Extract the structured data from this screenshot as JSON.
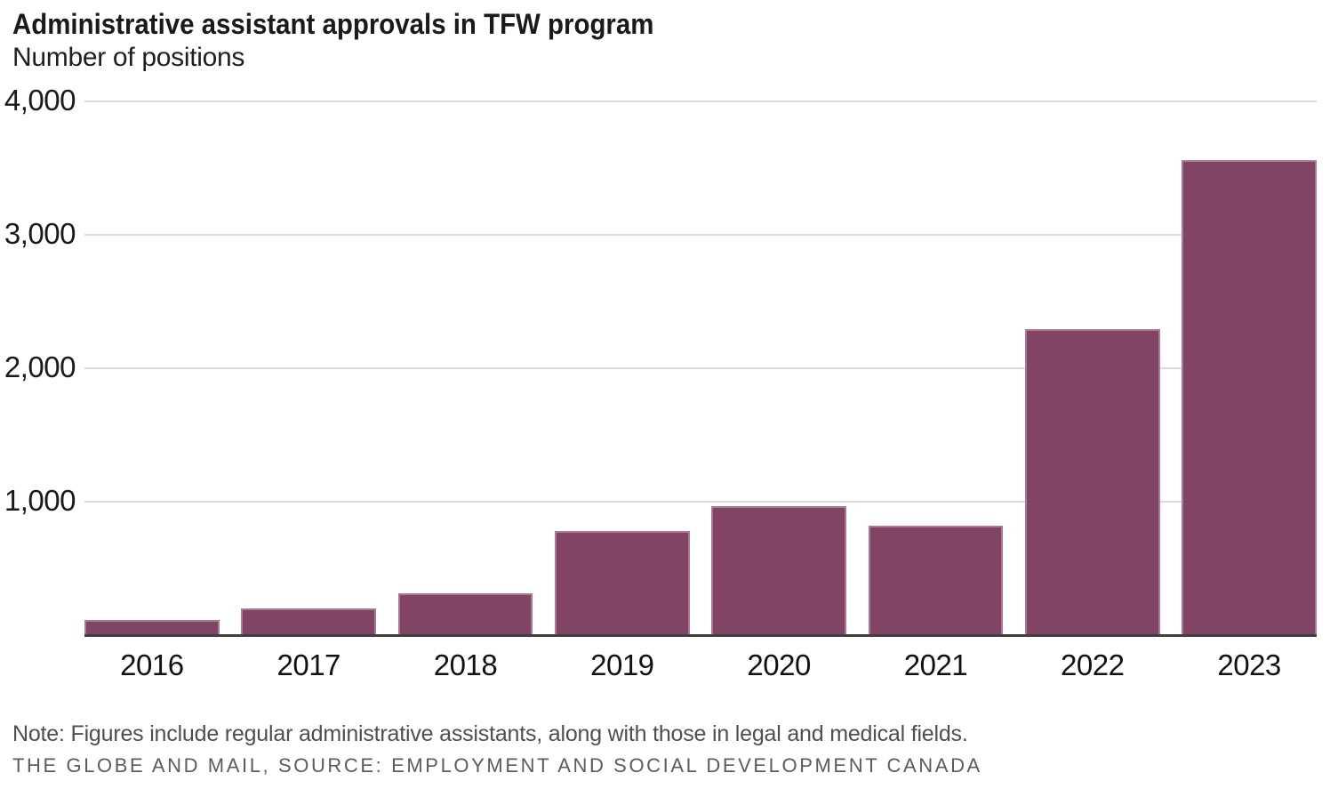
{
  "header": {
    "title": "Administrative assistant approvals in TFW program",
    "subtitle": "Number of positions"
  },
  "footer": {
    "note": "Note: Figures include regular administrative assistants, along with those in legal and medical fields.",
    "source": "THE GLOBE AND MAIL, SOURCE: EMPLOYMENT AND SOCIAL DEVELOPMENT CANADA"
  },
  "colors": {
    "bar": "#824464",
    "gridline": "#dcdcdc",
    "axis_line": "#3f3f3f",
    "tick_text": "#1a1a1a",
    "note_text": "#4f4f51",
    "source_text": "#5c5c5e"
  },
  "chart_data": {
    "type": "bar",
    "title": "Administrative assistant approvals in TFW program",
    "ylabel": "Number of positions",
    "categories": [
      "2016",
      "2017",
      "2018",
      "2019",
      "2020",
      "2021",
      "2022",
      "2023"
    ],
    "values": [
      105,
      195,
      305,
      780,
      965,
      820,
      2300,
      3570
    ],
    "ylim": [
      0,
      4000
    ],
    "yticks": [
      1000,
      2000,
      3000,
      4000
    ],
    "ytick_labels": [
      "1,000",
      "2,000",
      "3,000",
      "4,000"
    ],
    "grid": true,
    "legend": false,
    "bar_color": "#824464"
  }
}
